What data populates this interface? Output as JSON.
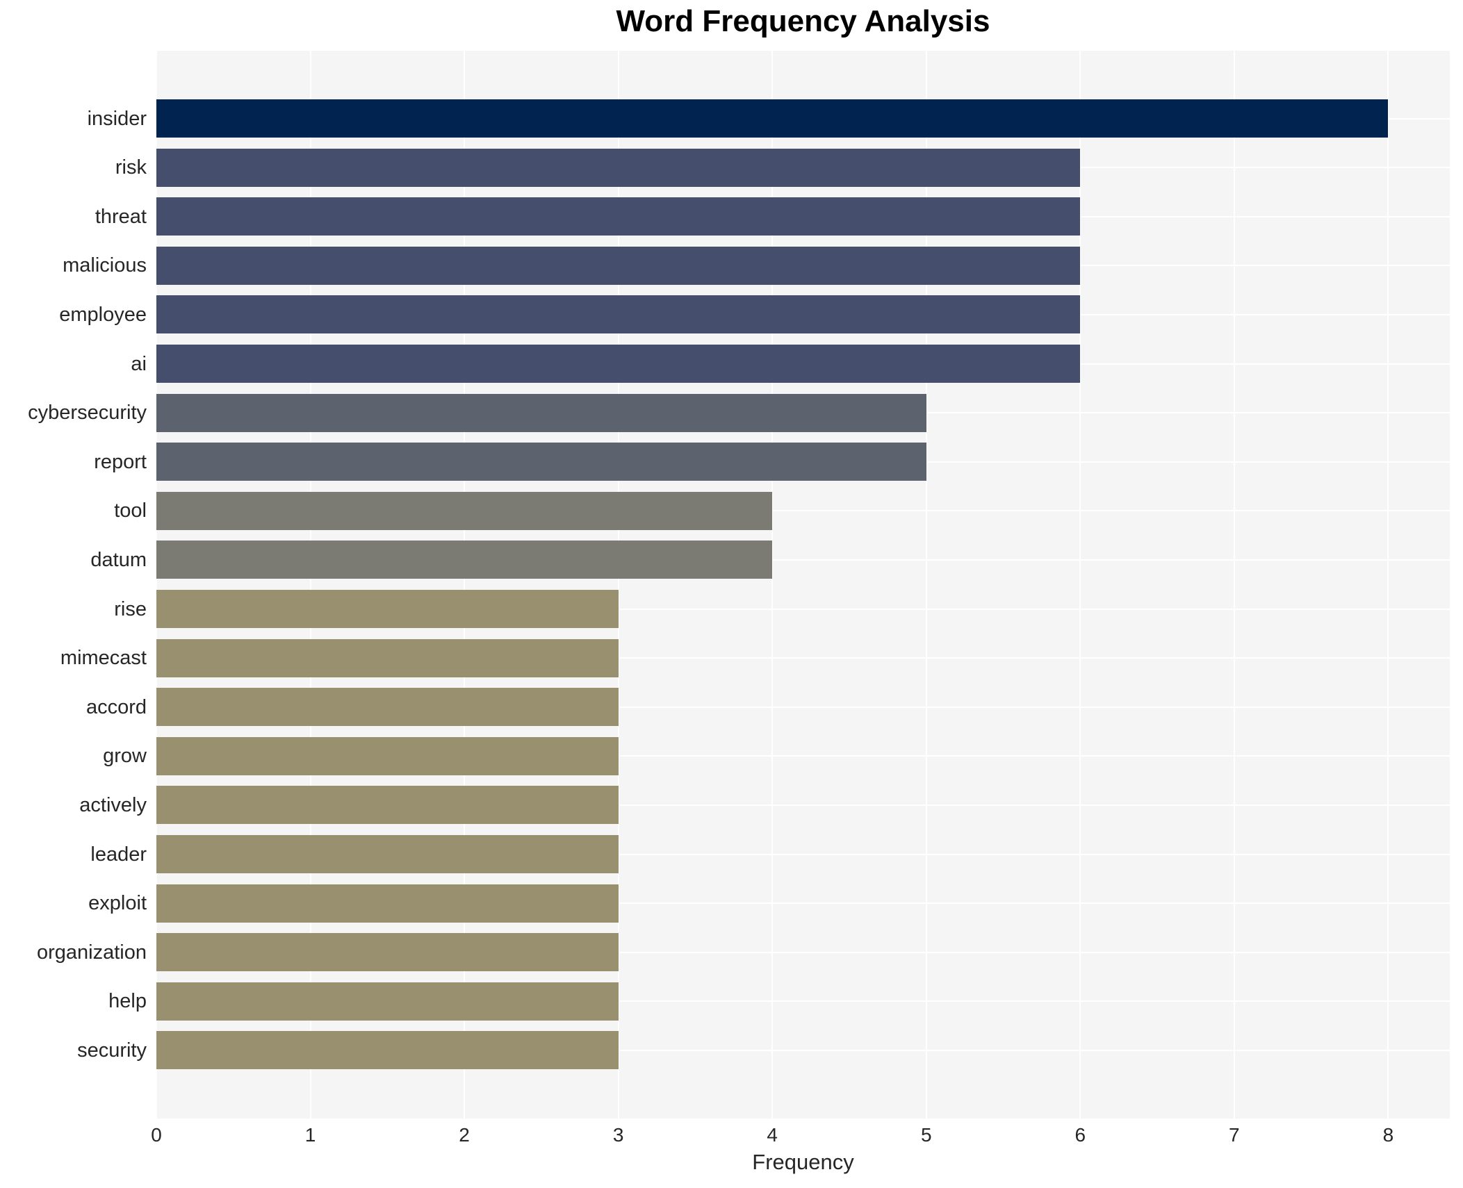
{
  "chart_data": {
    "type": "bar",
    "orientation": "horizontal",
    "title": "Word Frequency Analysis",
    "xlabel": "Frequency",
    "ylabel": "",
    "categories": [
      "insider",
      "risk",
      "threat",
      "malicious",
      "employee",
      "ai",
      "cybersecurity",
      "report",
      "tool",
      "datum",
      "rise",
      "mimecast",
      "accord",
      "grow",
      "actively",
      "leader",
      "exploit",
      "organization",
      "help",
      "security"
    ],
    "values": [
      8,
      6,
      6,
      6,
      6,
      6,
      5,
      5,
      4,
      4,
      3,
      3,
      3,
      3,
      3,
      3,
      3,
      3,
      3,
      3
    ],
    "bar_colors": [
      "#00234f",
      "#454f6d",
      "#454f6d",
      "#454f6d",
      "#454f6d",
      "#454f6d",
      "#5c626e",
      "#5c626e",
      "#7b7a73",
      "#7b7a73",
      "#999070",
      "#999070",
      "#999070",
      "#999070",
      "#999070",
      "#999070",
      "#999070",
      "#999070",
      "#999070",
      "#999070"
    ],
    "xlim": [
      0,
      8.4
    ],
    "xticks": [
      0,
      1,
      2,
      3,
      4,
      5,
      6,
      7,
      8
    ],
    "grid": true,
    "gridline_color": "#ffffff",
    "plot_background": "#f5f5f6",
    "figure_background": "#ffffff",
    "legend": null
  }
}
